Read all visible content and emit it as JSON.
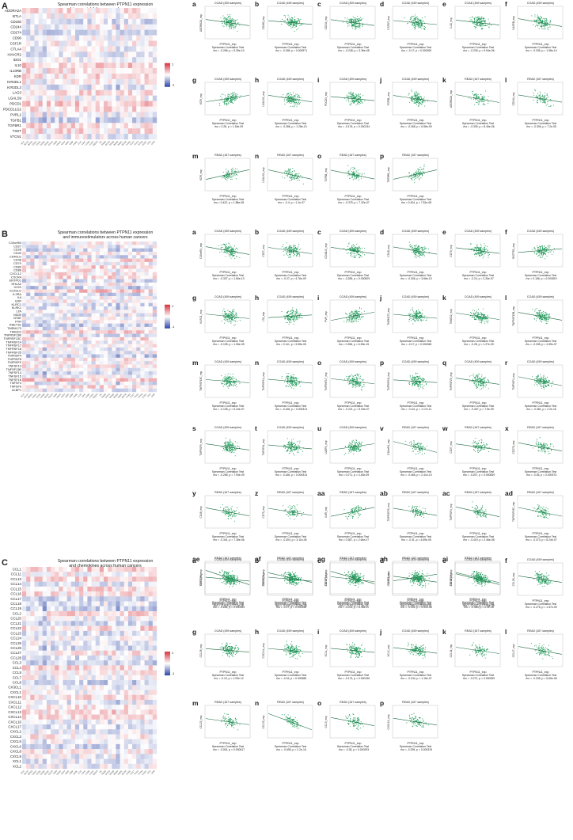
{
  "colors": {
    "scatter_point": "#1f9a5a",
    "fit_line": "#1e6b3f",
    "heat_pos": "#d6303b",
    "heat_neg": "#2c44a6",
    "heat_mid": "#ffffff"
  },
  "stat_test": "Spearman Correlation Test",
  "sections": [
    {
      "letter": "A",
      "title_lines": [
        "Spearman correlations between PTPN11 expression",
        "and immunoinhibitors across human cancers"
      ],
      "genes": [
        "ADORA2A",
        "BTLA",
        "CD160",
        "CD244",
        "CD274",
        "CD96",
        "CSF1R",
        "CTLA4",
        "HAVCR2",
        "IDO1",
        "IL10",
        "IL10RB",
        "KDR",
        "KIR2DL1",
        "KIR2DL3",
        "LAG3",
        "LGALS9",
        "PDCD1",
        "PDCD1LG2",
        "PVRL2",
        "TGFB1",
        "TGFBR1",
        "TIGIT",
        "VTCN1"
      ],
      "legend_max": "1",
      "legend_min": "-1",
      "panels": [
        {
          "label": "a",
          "cancer": "COAD (459 samples)",
          "gene_axis": "ADORA2A_exp",
          "stat": "rho = -0.266, p = 5.35e-10",
          "rho": -0.266
        },
        {
          "label": "b",
          "cancer": "COAD (459 samples)",
          "gene_axis": "CD160_exp",
          "stat": "rho = -0.158, p = 0.000971",
          "rho": -0.158
        },
        {
          "label": "c",
          "cancer": "COAD (459 samples)",
          "gene_axis": "CD244_exp",
          "stat": "rho = -0.248, p = 3.36e-08",
          "rho": -0.248
        },
        {
          "label": "d",
          "cancer": "COAD (459 samples)",
          "gene_axis": "CSF1R_exp",
          "stat": "rho = -0.17, p = 0.000269",
          "rho": -0.17
        },
        {
          "label": "e",
          "cancer": "COAD (459 samples)",
          "gene_axis": "IL10_exp",
          "stat": "rho = -0.205, p = 9.54e-06",
          "rho": -0.205
        },
        {
          "label": "f",
          "cancer": "COAD (459 samples)",
          "gene_axis": "IL10RB_exp",
          "stat": "rho = -0.335, p = 1.98e-14",
          "rho": -0.335
        },
        {
          "label": "g",
          "cancer": "COAD (459 samples)",
          "gene_axis": "KDR_exp",
          "stat": "rho = 0.28, p = 1.18e-09",
          "rho": 0.28
        },
        {
          "label": "h",
          "cancer": "COAD (459 samples)",
          "gene_axis": "LGALS9_exp",
          "stat": "rho = -0.286, p = 1.28e-10",
          "rho": -0.286
        },
        {
          "label": "i",
          "cancer": "COAD (459 samples)",
          "gene_axis": "PDCD1_exp",
          "stat": "rho = -0.176, p = 0.000134",
          "rho": -0.176
        },
        {
          "label": "j",
          "cancer": "COAD (459 samples)",
          "gene_axis": "TGFB1_exp",
          "stat": "rho = -0.268, p = 6.56e-09",
          "rho": -0.268
        },
        {
          "label": "k",
          "cancer": "READ (167 samples)",
          "gene_axis": "ADORA2A_exp",
          "stat": "rho = -0.339, p = 8.46e-06",
          "rho": -0.339
        },
        {
          "label": "l",
          "cancer": "READ (167 samples)",
          "gene_axis": "CD244_exp",
          "stat": "rho = -0.306, p = 7.2e-05",
          "rho": -0.306
        },
        {
          "label": "m",
          "cancer": "READ (167 samples)",
          "gene_axis": "KDR_exp",
          "stat": "rho = 0.422, p = 1.88e-08",
          "rho": 0.422
        },
        {
          "label": "n",
          "cancer": "READ (167 samples)",
          "gene_axis": "LGALS9_exp",
          "stat": "rho = -0.4, p = 1.1e-07",
          "rho": -0.4
        },
        {
          "label": "o",
          "cancer": "READ (167 samples)",
          "gene_axis": "TGFB1_exp",
          "stat": "rho = -0.375, p = 7.32e-07",
          "rho": -0.375
        },
        {
          "label": "p",
          "cancer": "READ (167 samples)",
          "gene_axis": "TGFBR1_exp",
          "stat": "rho = 0.404, p = 7.81e-08",
          "rho": 0.404
        }
      ]
    },
    {
      "letter": "B",
      "title_lines": [
        "Spearman correlations between PTPN11 expression",
        "and immunostimulators across human cancers"
      ],
      "genes": [
        "C10orf54",
        "CD27",
        "CD28",
        "CD40",
        "CD40LG",
        "CD48",
        "CD70",
        "CD80",
        "CD86",
        "CXCL12",
        "CXCR4",
        "ENTPD1",
        "HHLA2",
        "ICOS",
        "ICOSLG",
        "IL2RA",
        "IL6",
        "IL6R",
        "KLRC1",
        "KLRK1",
        "LTA",
        "MICB",
        "NT5E",
        "PVR",
        "RAET1E",
        "TMEM173",
        "TMIGD2",
        "TNFRSF13B",
        "TNFRSF13C",
        "TNFRSF14",
        "TNFRSF17",
        "TNFRSF18",
        "TNFRSF25",
        "TNFRSF4",
        "TNFRSF8",
        "TNFRSF9",
        "TNFSF13",
        "TNFSF13B",
        "TNFSF14",
        "TNFSF15",
        "TNFSF18",
        "TNFSF4",
        "TNFSF9",
        "ULBP1"
      ],
      "legend_max": "1",
      "legend_min": "-1",
      "panels": [
        {
          "label": "a",
          "cancer": "COAD (459 samples)",
          "gene_axis": "C10orf54_exp",
          "stat": "rho = -0.337, p = 1.56e-13",
          "rho": -0.337
        },
        {
          "label": "b",
          "cancer": "COAD (459 samples)",
          "gene_axis": "CD27_exp",
          "stat": "rho = -0.27, p = 4.76e-09",
          "rho": -0.27
        },
        {
          "label": "c",
          "cancer": "COAD (459 samples)",
          "gene_axis": "CD40LG_exp",
          "stat": "rho = -0.285, p = 0.000829",
          "rho": -0.285
        },
        {
          "label": "d",
          "cancer": "COAD (459 samples)",
          "gene_axis": "CD48_exp",
          "stat": "rho = -0.306, p = 3.66e-10",
          "rho": -0.306
        },
        {
          "label": "e",
          "cancer": "COAD (459 samples)",
          "gene_axis": "CD70_exp",
          "stat": "rho = -0.24, p = 2.26e-07",
          "rho": -0.24
        },
        {
          "label": "f",
          "cancer": "COAD (459 samples)",
          "gene_axis": "ENTPD1_exp",
          "stat": "rho = 0.156, p = 0.000819",
          "rho": 0.156
        },
        {
          "label": "g",
          "cancer": "COAD (459 samples)",
          "gene_axis": "KLRC1_exp",
          "stat": "rho = -0.195, p = 1.96e-05",
          "rho": -0.195
        },
        {
          "label": "h",
          "cancer": "COAD (459 samples)",
          "gene_axis": "LTA_exp",
          "stat": "rho = 0.111, p = 5.55e-05",
          "rho": 0.111
        },
        {
          "label": "i",
          "cancer": "COAD (459 samples)",
          "gene_axis": "PVR_exp",
          "stat": "rho = 0.356, p = 6.53e-15",
          "rho": 0.356
        },
        {
          "label": "j",
          "cancer": "COAD (459 samples)",
          "gene_axis": "TMEM173_exp",
          "stat": "rho = -0.17, p = 0.000268",
          "rho": -0.17
        },
        {
          "label": "k",
          "cancer": "COAD (459 samples)",
          "gene_axis": "TMIGD2_exp",
          "stat": "rho = -0.28, p = 1.27e-09",
          "rho": -0.28
        },
        {
          "label": "l",
          "cancer": "COAD (459 samples)",
          "gene_axis": "TNFRSF13B_exp",
          "stat": "rho = -0.335, p = 4.59e-07",
          "rho": -0.335
        },
        {
          "label": "m",
          "cancer": "COAD (459 samples)",
          "gene_axis": "TNFRSF13C_exp",
          "stat": "rho = -0.135, p = 6.24e-07",
          "rho": -0.135
        },
        {
          "label": "n",
          "cancer": "COAD (459 samples)",
          "gene_axis": "TNFRSF14_exp",
          "stat": "rho = -0.166, p = 0.000314",
          "rho": -0.166
        },
        {
          "label": "o",
          "cancer": "COAD (459 samples)",
          "gene_axis": "TNFRSF17_exp",
          "stat": "rho = -0.221, p = 5.94e-07",
          "rho": -0.221
        },
        {
          "label": "p",
          "cancer": "COAD (459 samples)",
          "gene_axis": "TNFRSF18_exp",
          "stat": "rho = -0.111, p = 1.17e-11",
          "rho": -0.111
        },
        {
          "label": "q",
          "cancer": "COAD (459 samples)",
          "gene_axis": "TNFRSF25_exp",
          "stat": "rho = -0.267, p = 7.5e-09",
          "rho": -0.267
        },
        {
          "label": "r",
          "cancer": "COAD (459 samples)",
          "gene_axis": "TNFRSF4_exp",
          "stat": "rho = -0.381, p = 2.2e-16",
          "rho": -0.381
        },
        {
          "label": "s",
          "cancer": "COAD (459 samples)",
          "gene_axis": "TNFRSF9_exp",
          "stat": "rho = -0.265, p = 7.94e-09",
          "rho": -0.265
        },
        {
          "label": "t",
          "cancer": "COAD (459 samples)",
          "gene_axis": "TNFSF14_exp",
          "stat": "rho = -0.166, p = 0.000314",
          "rho": -0.166
        },
        {
          "label": "u",
          "cancer": "COAD (459 samples)",
          "gene_axis": "ULBP1_exp",
          "stat": "rho = 0.271, p = 4.43e-09",
          "rho": 0.271
        },
        {
          "label": "v",
          "cancer": "READ (167 samples)",
          "gene_axis": "C10orf54_exp",
          "stat": "rho = -0.466, p = 2.41e-10",
          "rho": -0.466
        },
        {
          "label": "w",
          "cancer": "READ (167 samples)",
          "gene_axis": "CD27_exp",
          "stat": "rho = -0.257, p = 0.000839",
          "rho": -0.257
        },
        {
          "label": "x",
          "cancer": "READ (167 samples)",
          "gene_axis": "CD276_exp",
          "stat": "rho = -0.35, p = 0.000373",
          "rho": -0.35
        },
        {
          "label": "y",
          "cancer": "READ (167 samples)",
          "gene_axis": "CD48_exp",
          "stat": "rho = -0.341, p = 7.35e-06",
          "rho": -0.341
        },
        {
          "label": "z",
          "cancer": "READ (167 samples)",
          "gene_axis": "CD70_exp",
          "stat": "rho = -0.304, p = 3.11e-06",
          "rho": -0.304
        },
        {
          "label": "aa",
          "cancer": "READ (167 samples)",
          "gene_axis": "IL6R_exp",
          "stat": "rho = 0.387, p = 2.64e-07",
          "rho": 0.387
        },
        {
          "label": "ab",
          "cancer": "READ (167 samples)",
          "gene_axis": "TNFRSF25_exp",
          "stat": "rho = -0.31, p = 4.69e-05",
          "rho": -0.31
        },
        {
          "label": "ac",
          "cancer": "READ (167 samples)",
          "gene_axis": "TNFRSF4_exp",
          "stat": "rho = -0.419, p = 2.46e-08",
          "rho": -0.419
        },
        {
          "label": "ad",
          "cancer": "READ (167 samples)",
          "gene_axis": "TNFRSF13C_exp",
          "stat": "rho = -0.373, p = 8.24e-07",
          "rho": -0.373
        },
        {
          "label": "ae",
          "cancer": "READ (167 samples)",
          "gene_axis": "TNFRSF4_exp",
          "stat": "rho = -0.616, p = 2.2e-16",
          "rho": -0.616
        },
        {
          "label": "af",
          "cancer": "READ (167 samples)",
          "gene_axis": "TNFRSF9_exp",
          "stat": "rho = -0.409, p = 5.29e-08",
          "rho": -0.409
        },
        {
          "label": "ag",
          "cancer": "READ (167 samples)",
          "gene_axis": "TNFSF14_exp",
          "stat": "rho = -0.53, p = 2.2e-16",
          "rho": -0.53
        },
        {
          "label": "ah",
          "cancer": "READ (167 samples)",
          "gene_axis": "ULBP1_exp",
          "stat": "rho = 0.285, p = 0.000191",
          "rho": 0.285
        },
        {
          "label": "ai",
          "cancer": "READ (167 samples)",
          "gene_axis": "TNFSF15_exp",
          "stat": "rho = -0.432, p = 1.55e-08",
          "rho": -0.432
        }
      ]
    },
    {
      "letter": "C",
      "title_lines": [
        "Spearman correlations between PTPN11 expression",
        "and chemokines across human cancers"
      ],
      "genes": [
        "CCL1",
        "CCL11",
        "CCL13",
        "CCL14",
        "CCL15",
        "CCL16",
        "CCL17",
        "CCL18",
        "CCL19",
        "CCL2",
        "CCL20",
        "CCL21",
        "CCL22",
        "CCL23",
        "CCL24",
        "CCL25",
        "CCL26",
        "CCL27",
        "CCL28",
        "CCL3",
        "CCL4",
        "CCL5",
        "CCL7",
        "CCL8",
        "CX3CL1",
        "CXCL1",
        "CXCL10",
        "CXCL11",
        "CXCL12",
        "CXCL13",
        "CXCL14",
        "CXCL16",
        "CXCL17",
        "CXCL2",
        "CXCL3",
        "CXCL5",
        "CXCL6",
        "CXCL8",
        "CXCL9",
        "XCL1",
        "XCL2"
      ],
      "legend_max": "1",
      "legend_min": "-1",
      "panels": [
        {
          "label": "a",
          "cancer": "COAD (459 samples)",
          "gene_axis": "CCL2_exp",
          "stat": "rho = -0.166, p = 0.000353",
          "rho": -0.166
        },
        {
          "label": "b",
          "cancer": "COAD (459 samples)",
          "gene_axis": "CCL15_exp",
          "stat": "rho = -0.17, p = 0.000258",
          "rho": -0.17
        },
        {
          "label": "c",
          "cancer": "COAD (459 samples)",
          "gene_axis": "CCL17_exp",
          "stat": "rho = -0.211, p = 6.35e-07",
          "rho": -0.211
        },
        {
          "label": "d",
          "cancer": "COAD (459 samples)",
          "gene_axis": "CCL19_exp",
          "stat": "rho = -0.251, p = 5.51e-08",
          "rho": -0.251
        },
        {
          "label": "e",
          "cancer": "COAD (459 samples)",
          "gene_axis": "CCL21_exp",
          "stat": "rho = -0.464, p = 2.2e-16",
          "rho": -0.464
        },
        {
          "label": "f",
          "cancer": "COAD (459 samples)",
          "gene_axis": "CCL26_exp",
          "stat": "rho = -0.276, p = 1.37e-09",
          "rho": -0.276
        },
        {
          "label": "g",
          "cancer": "COAD (459 samples)",
          "gene_axis": "CCL28_exp",
          "stat": "rho = -0.15, p = 1.09e-12",
          "rho": -0.15
        },
        {
          "label": "h",
          "cancer": "COAD (459 samples)",
          "gene_axis": "CXCL14_exp",
          "stat": "rho = -0.16, p = 0.000585",
          "rho": -0.16
        },
        {
          "label": "i",
          "cancer": "COAD (459 samples)",
          "gene_axis": "XCL1_exp",
          "stat": "rho = -0.173, p = 0.000196",
          "rho": -0.173
        },
        {
          "label": "j",
          "cancer": "COAD (459 samples)",
          "gene_axis": "XCL2_exp",
          "stat": "rho = -0.244, p = 1.15e-07",
          "rho": -0.244
        },
        {
          "label": "k",
          "cancer": "READ (167 samples)",
          "gene_axis": "CCL11_exp",
          "stat": "rho = -0.272, p = 0.000359",
          "rho": -0.272
        },
        {
          "label": "l",
          "cancer": "READ (167 samples)",
          "gene_axis": "CCL17_exp",
          "stat": "rho = -0.335, p = 5.65e-05",
          "rho": -0.335
        },
        {
          "label": "m",
          "cancer": "READ (167 samples)",
          "gene_axis": "CCL22_exp",
          "stat": "rho = -0.263, p = 0.000617",
          "rho": -0.263
        },
        {
          "label": "n",
          "cancer": "READ (167 samples)",
          "gene_axis": "CCL23_exp",
          "stat": "rho = -0.695, p = 2.2e-16",
          "rho": -0.695
        },
        {
          "label": "o",
          "cancer": "READ (167 samples)",
          "gene_axis": "CCL5_exp",
          "stat": "rho = -0.35, p = 0.000293",
          "rho": -0.35
        },
        {
          "label": "p",
          "cancer": "READ (167 samples)",
          "gene_axis": "CXCL14_exp",
          "stat": "rho = -0.295, p = 0.000319",
          "rho": -0.295
        }
      ]
    }
  ],
  "x_axis_label": "PTPN11_exp",
  "cancer_columns": [
    "ACC",
    "BLCA",
    "BRCA",
    "CESC",
    "CHOL",
    "COAD",
    "DLBC",
    "ESCA",
    "GBM",
    "HNSC",
    "KICH",
    "KIRC",
    "KIRP",
    "LAML",
    "LGG",
    "LIHC",
    "LUAD",
    "LUSC",
    "MESO",
    "OV",
    "PAAD",
    "PCPG",
    "PRAD",
    "READ",
    "SARC",
    "SKCM",
    "STAD",
    "TGCT",
    "THCA",
    "THYM",
    "UCEC",
    "UCS",
    "UVM"
  ]
}
